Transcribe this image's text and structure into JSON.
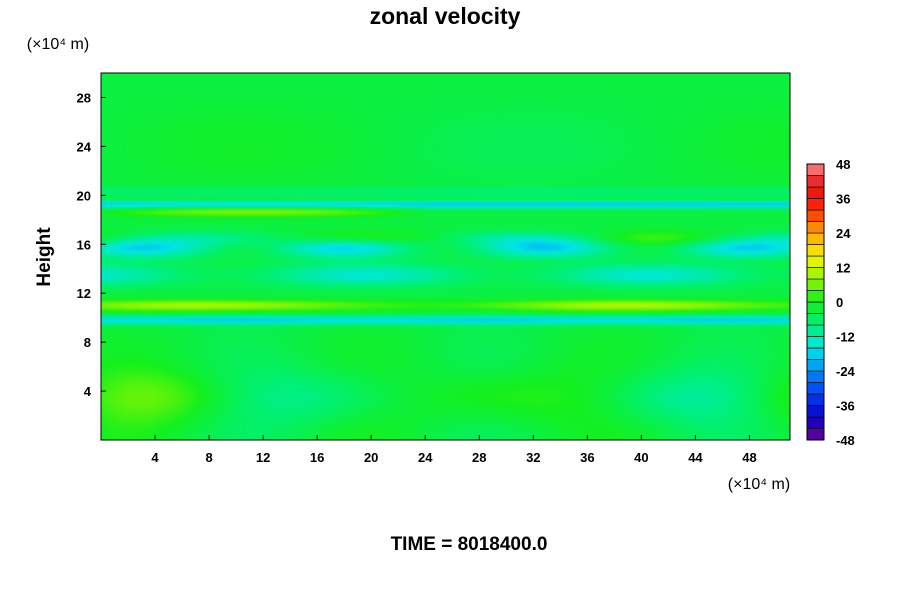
{
  "chart_data": {
    "type": "heatmap",
    "title": "zonal velocity",
    "xlabel": "",
    "ylabel": "Height",
    "x_unit": "(×10⁴ m)",
    "y_unit": "(×10⁴ m)",
    "xlim": [
      0,
      51
    ],
    "ylim": [
      0,
      30
    ],
    "x_ticks": [
      4,
      8,
      12,
      16,
      20,
      24,
      28,
      32,
      36,
      40,
      44,
      48
    ],
    "y_ticks": [
      4,
      8,
      12,
      16,
      20,
      24,
      28
    ],
    "colorbar": {
      "min": -48,
      "max": 48,
      "levels": [
        -48,
        -44,
        -40,
        -36,
        -32,
        -28,
        -24,
        -20,
        -16,
        -12,
        -8,
        -4,
        0,
        4,
        8,
        12,
        16,
        20,
        24,
        28,
        32,
        36,
        40,
        44,
        48
      ],
      "tick_labels": [
        48,
        36,
        24,
        12,
        0,
        -12,
        -24,
        -36,
        -48
      ]
    },
    "field_approx": {
      "description_bands": [
        {
          "y": 19.2,
          "value": -18
        },
        {
          "y": 18.7,
          "value": 6
        },
        {
          "y": 15.7,
          "value": -16
        },
        {
          "y": 13.5,
          "value": -10
        },
        {
          "y": 11.0,
          "value": 12
        },
        {
          "y": 9.8,
          "value": -15
        }
      ]
    },
    "time_label": "TIME = 8018400.0"
  }
}
